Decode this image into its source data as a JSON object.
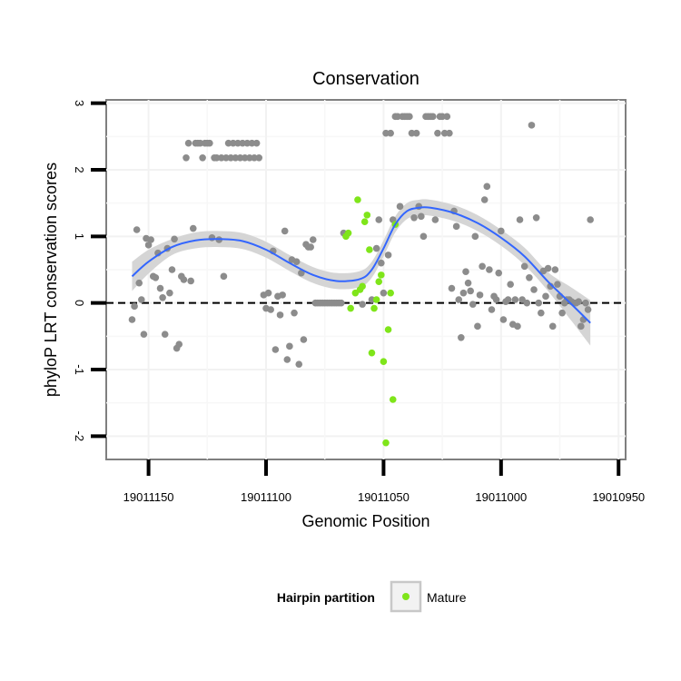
{
  "chart_data": {
    "type": "scatter",
    "title": "Conservation",
    "xlabel": "Genomic Position",
    "ylabel": "phyloP LRT conservation scores",
    "x_reversed": true,
    "xlim": [
      19011168,
      19010947
    ],
    "ylim": [
      -2.35,
      3.05
    ],
    "x_ticks": [
      19011150,
      19011100,
      19011050,
      19011000,
      19010950
    ],
    "x_tick_labels": [
      "19011150",
      "19011100",
      "19011050",
      "19011000",
      "19010950"
    ],
    "y_ticks": [
      -2,
      -1,
      0,
      1,
      2,
      3
    ],
    "y_tick_labels": [
      "-2",
      "-1",
      "0",
      "1",
      "2",
      "3"
    ],
    "reference_line": {
      "y": 0,
      "style": "dashed"
    },
    "colors": {
      "other": "#8c8c8c",
      "mature": "#7fe51a",
      "smooth": "#3366ff",
      "band": "#d5d5d5"
    },
    "legend": {
      "title": "Hairpin partition",
      "entries": [
        {
          "label": "Mature",
          "color": "#7fe51a"
        }
      ]
    },
    "series": [
      {
        "name": "Other",
        "points": [
          [
            19011157,
            -0.25
          ],
          [
            19011156,
            -0.05
          ],
          [
            19011155,
            1.1
          ],
          [
            19011154,
            0.3
          ],
          [
            19011153,
            0.05
          ],
          [
            19011152,
            -0.47
          ],
          [
            19011151,
            0.97
          ],
          [
            19011150,
            0.87
          ],
          [
            19011149,
            0.95
          ],
          [
            19011148,
            0.4
          ],
          [
            19011147,
            0.38
          ],
          [
            19011146,
            0.75
          ],
          [
            19011145,
            0.22
          ],
          [
            19011144,
            0.08
          ],
          [
            19011143,
            -0.47
          ],
          [
            19011142,
            0.82
          ],
          [
            19011141,
            0.15
          ],
          [
            19011140,
            0.5
          ],
          [
            19011139,
            0.96
          ],
          [
            19011138,
            -0.68
          ],
          [
            19011137,
            -0.62
          ],
          [
            19011136,
            0.4
          ],
          [
            19011135,
            0.35
          ],
          [
            19011134,
            2.18
          ],
          [
            19011133,
            2.4
          ],
          [
            19011132,
            0.33
          ],
          [
            19011131,
            1.12
          ],
          [
            19011130,
            2.4
          ],
          [
            19011129,
            2.4
          ],
          [
            19011128,
            2.4
          ],
          [
            19011127,
            2.18
          ],
          [
            19011126,
            2.4
          ],
          [
            19011125,
            2.4
          ],
          [
            19011124,
            2.4
          ],
          [
            19011123,
            0.98
          ],
          [
            19011122,
            2.18
          ],
          [
            19011121,
            2.18
          ],
          [
            19011120,
            0.95
          ],
          [
            19011119,
            2.18
          ],
          [
            19011118,
            0.4
          ],
          [
            19011117,
            2.18
          ],
          [
            19011116,
            2.4
          ],
          [
            19011115,
            2.18
          ],
          [
            19011114,
            2.4
          ],
          [
            19011113,
            2.18
          ],
          [
            19011112,
            2.4
          ],
          [
            19011111,
            2.18
          ],
          [
            19011110,
            2.4
          ],
          [
            19011109,
            2.18
          ],
          [
            19011108,
            2.4
          ],
          [
            19011107,
            2.18
          ],
          [
            19011106,
            2.4
          ],
          [
            19011105,
            2.18
          ],
          [
            19011104,
            2.4
          ],
          [
            19011103,
            2.18
          ],
          [
            19011101,
            0.12
          ],
          [
            19011100,
            -0.08
          ],
          [
            19011099,
            0.15
          ],
          [
            19011098,
            -0.1
          ],
          [
            19011097,
            0.78
          ],
          [
            19011096,
            -0.7
          ],
          [
            19011095,
            0.1
          ],
          [
            19011094,
            -0.18
          ],
          [
            19011093,
            0.12
          ],
          [
            19011092,
            1.08
          ],
          [
            19011091,
            -0.85
          ],
          [
            19011090,
            -0.65
          ],
          [
            19011089,
            0.65
          ],
          [
            19011088,
            -0.15
          ],
          [
            19011087,
            0.62
          ],
          [
            19011086,
            -0.92
          ],
          [
            19011085,
            0.45
          ],
          [
            19011084,
            -0.55
          ],
          [
            19011083,
            0.88
          ],
          [
            19011082,
            0.84
          ],
          [
            19011081,
            0.84
          ],
          [
            19011080,
            0.95
          ],
          [
            19011079,
            0.0
          ],
          [
            19011078,
            0.0
          ],
          [
            19011077,
            0.0
          ],
          [
            19011076,
            0.0
          ],
          [
            19011075,
            0.0
          ],
          [
            19011074,
            0.0
          ],
          [
            19011073,
            0.0
          ],
          [
            19011072,
            0.0
          ],
          [
            19011071,
            0.0
          ],
          [
            19011070,
            0.0
          ],
          [
            19011069,
            0.0
          ],
          [
            19011068,
            0.0
          ],
          [
            19011067,
            1.05
          ],
          [
            19011059,
            -0.02
          ],
          [
            19011055,
            0.05
          ],
          [
            19011053,
            0.82
          ],
          [
            19011052,
            1.25
          ],
          [
            19011051,
            0.6
          ],
          [
            19011050,
            0.15
          ],
          [
            19011049,
            2.55
          ],
          [
            19011048,
            0.72
          ],
          [
            19011047,
            2.55
          ],
          [
            19011046,
            1.25
          ],
          [
            19011045,
            2.8
          ],
          [
            19011044,
            2.8
          ],
          [
            19011043,
            1.45
          ],
          [
            19011042,
            2.8
          ],
          [
            19011041,
            2.8
          ],
          [
            19011040,
            2.8
          ],
          [
            19011039,
            2.8
          ],
          [
            19011038,
            2.55
          ],
          [
            19011037,
            1.28
          ],
          [
            19011036,
            2.55
          ],
          [
            19011035,
            1.45
          ],
          [
            19011034,
            1.3
          ],
          [
            19011033,
            1.0
          ],
          [
            19011032,
            2.8
          ],
          [
            19011031,
            2.8
          ],
          [
            19011030,
            2.8
          ],
          [
            19011029,
            2.8
          ],
          [
            19011028,
            1.25
          ],
          [
            19011027,
            2.55
          ],
          [
            19011026,
            2.8
          ],
          [
            19011025,
            2.8
          ],
          [
            19011024,
            2.55
          ],
          [
            19011023,
            2.8
          ],
          [
            19011022,
            2.55
          ],
          [
            19011021,
            0.22
          ],
          [
            19011020,
            1.38
          ],
          [
            19011019,
            1.15
          ],
          [
            19011018,
            0.05
          ],
          [
            19011017,
            -0.52
          ],
          [
            19011016,
            0.15
          ],
          [
            19011015,
            0.47
          ],
          [
            19011014,
            0.3
          ],
          [
            19011013,
            0.18
          ],
          [
            19011012,
            -0.02
          ],
          [
            19011011,
            1.0
          ],
          [
            19011010,
            -0.35
          ],
          [
            19011009,
            0.12
          ],
          [
            19011008,
            0.55
          ],
          [
            19011007,
            1.55
          ],
          [
            19011006,
            1.75
          ],
          [
            19011005,
            0.5
          ],
          [
            19011004,
            -0.1
          ],
          [
            19011003,
            0.1
          ],
          [
            19011002,
            0.05
          ],
          [
            19011001,
            0.45
          ],
          [
            19011000,
            1.08
          ],
          [
            19010999,
            -0.25
          ],
          [
            19010998,
            0.02
          ],
          [
            19010997,
            0.05
          ],
          [
            19010996,
            0.28
          ],
          [
            19010995,
            -0.32
          ],
          [
            19010994,
            0.05
          ],
          [
            19010993,
            -0.35
          ],
          [
            19010992,
            1.25
          ],
          [
            19010991,
            0.05
          ],
          [
            19010990,
            0.55
          ],
          [
            19010989,
            0.0
          ],
          [
            19010988,
            0.38
          ],
          [
            19010987,
            2.67
          ],
          [
            19010986,
            0.2
          ],
          [
            19010985,
            1.28
          ],
          [
            19010984,
            0.0
          ],
          [
            19010983,
            -0.15
          ],
          [
            19010982,
            0.48
          ],
          [
            19010981,
            0.1
          ],
          [
            19010980,
            0.52
          ],
          [
            19010979,
            0.25
          ],
          [
            19010978,
            -0.35
          ],
          [
            19010977,
            0.5
          ],
          [
            19010976,
            0.28
          ],
          [
            19010975,
            0.1
          ],
          [
            19010974,
            -0.15
          ],
          [
            19010973,
            0.0
          ],
          [
            19010972,
            0.05
          ],
          [
            19010971,
            0.05
          ],
          [
            19010970,
            0.02
          ],
          [
            19010969,
            0.0
          ],
          [
            19010968,
            0.0
          ],
          [
            19010967,
            0.02
          ],
          [
            19010966,
            -0.35
          ],
          [
            19010965,
            -0.25
          ],
          [
            19010964,
            0.0
          ],
          [
            19010963,
            -0.1
          ],
          [
            19010962,
            1.25
          ]
        ]
      },
      {
        "name": "Mature",
        "points": [
          [
            19011066,
            1.0
          ],
          [
            19011065,
            1.05
          ],
          [
            19011064,
            -0.08
          ],
          [
            19011062,
            0.15
          ],
          [
            19011061,
            1.55
          ],
          [
            19011060,
            0.2
          ],
          [
            19011059,
            0.25
          ],
          [
            19011058,
            1.22
          ],
          [
            19011057,
            1.32
          ],
          [
            19011056,
            0.8
          ],
          [
            19011055,
            -0.75
          ],
          [
            19011054,
            -0.08
          ],
          [
            19011053,
            0.05
          ],
          [
            19011052,
            0.32
          ],
          [
            19011051,
            0.42
          ],
          [
            19011050,
            -0.88
          ],
          [
            19011049,
            -2.1
          ],
          [
            19011048,
            -0.4
          ],
          [
            19011047,
            0.15
          ],
          [
            19011046,
            -1.45
          ],
          [
            19011045,
            1.18
          ]
        ]
      }
    ],
    "smooth_line": [
      [
        19011157,
        0.4
      ],
      [
        19011150,
        0.62
      ],
      [
        19011140,
        0.84
      ],
      [
        19011130,
        0.94
      ],
      [
        19011120,
        0.96
      ],
      [
        19011110,
        0.93
      ],
      [
        19011100,
        0.8
      ],
      [
        19011090,
        0.6
      ],
      [
        19011080,
        0.42
      ],
      [
        19011070,
        0.33
      ],
      [
        19011060,
        0.36
      ],
      [
        19011055,
        0.5
      ],
      [
        19011050,
        0.82
      ],
      [
        19011045,
        1.18
      ],
      [
        19011040,
        1.38
      ],
      [
        19011035,
        1.43
      ],
      [
        19011030,
        1.43
      ],
      [
        19011020,
        1.35
      ],
      [
        19011010,
        1.2
      ],
      [
        19011000,
        0.98
      ],
      [
        19010990,
        0.7
      ],
      [
        19010980,
        0.32
      ],
      [
        19010970,
        -0.02
      ],
      [
        19010962,
        -0.3
      ]
    ],
    "smooth_band_half_width": [
      [
        19011157,
        0.22
      ],
      [
        19011140,
        0.12
      ],
      [
        19011120,
        0.12
      ],
      [
        19011100,
        0.12
      ],
      [
        19011080,
        0.12
      ],
      [
        19011060,
        0.12
      ],
      [
        19011040,
        0.12
      ],
      [
        19011020,
        0.12
      ],
      [
        19011000,
        0.12
      ],
      [
        19010980,
        0.14
      ],
      [
        19010962,
        0.34
      ]
    ]
  }
}
